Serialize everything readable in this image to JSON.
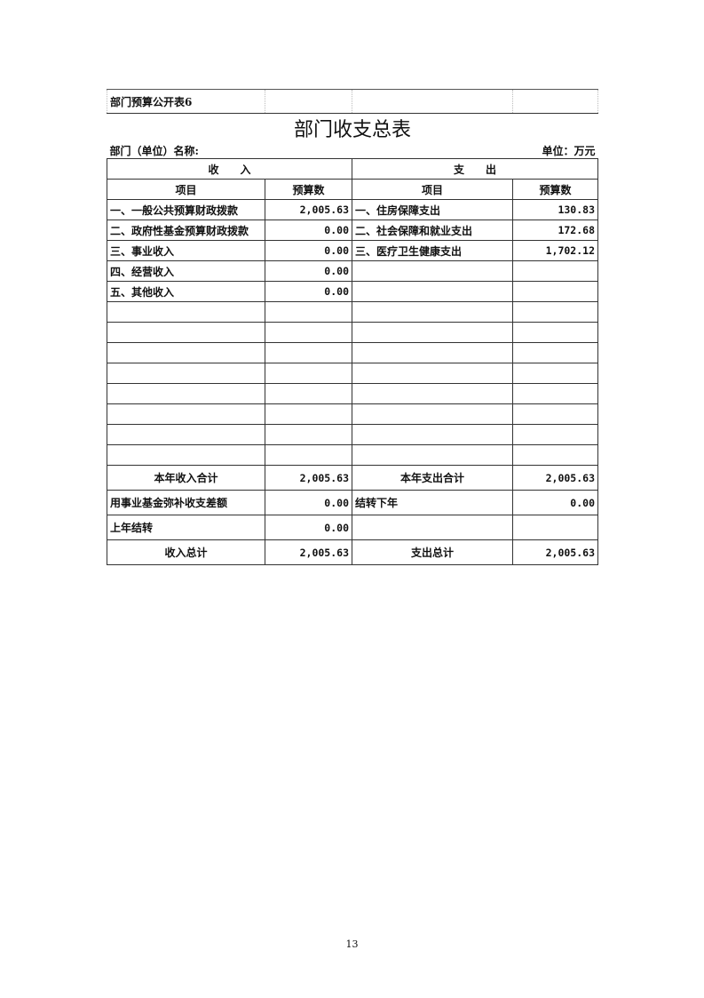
{
  "table_id": "部门预算公开表6",
  "title": "部门收支总表",
  "dept_label": "部门（单位）名称:",
  "unit_label": "单位：万元",
  "income_header": "收　　入",
  "expense_header": "支　　出",
  "col_item": "项目",
  "col_budget": "预算数",
  "rows": [
    {
      "in_item": "一、一般公共预算财政拨款",
      "in_val": "2,005.63",
      "out_item": "一、住房保障支出",
      "out_val": "130.83"
    },
    {
      "in_item": "二、政府性基金预算财政拨款",
      "in_val": "0.00",
      "out_item": "二、社会保障和就业支出",
      "out_val": "172.68"
    },
    {
      "in_item": "三、事业收入",
      "in_val": "0.00",
      "out_item": "三、医疗卫生健康支出",
      "out_val": "1,702.12"
    },
    {
      "in_item": "四、经营收入",
      "in_val": "0.00",
      "out_item": "",
      "out_val": ""
    },
    {
      "in_item": "五、其他收入",
      "in_val": "0.00",
      "out_item": "",
      "out_val": ""
    }
  ],
  "blank_rows": 8,
  "totals": [
    {
      "in_item": "本年收入合计",
      "in_val": "2,005.63",
      "out_item": "本年支出合计",
      "out_val": "2,005.63",
      "center": true
    },
    {
      "in_item": "用事业基金弥补收支差额",
      "in_val": "0.00",
      "out_item": "结转下年",
      "out_val": "0.00",
      "center": false
    },
    {
      "in_item": "上年结转",
      "in_val": "0.00",
      "out_item": "",
      "out_val": "",
      "center": false
    },
    {
      "in_item": "收入总计",
      "in_val": "2,005.63",
      "out_item": "支出总计",
      "out_val": "2,005.63",
      "center": true
    }
  ],
  "page_number": "13"
}
